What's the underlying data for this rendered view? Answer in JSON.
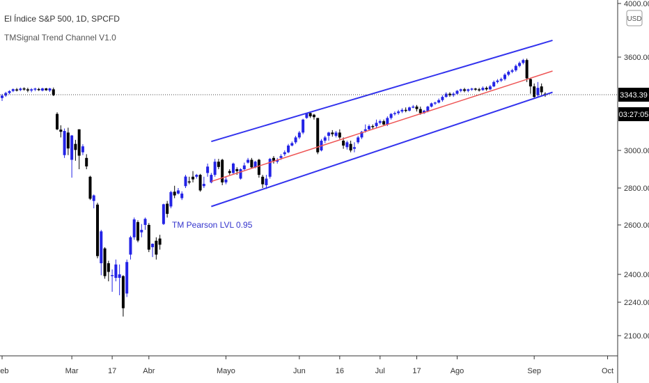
{
  "legend": {
    "title": "El Índice S&P 500, 1D, SPCFD",
    "indicator": "TMSignal Trend Channel V1.0"
  },
  "currency_button": "USD",
  "price_badge": "3343.39",
  "timer_badge": "03:27:05",
  "annotation": "TM Pearson LVL 0.95",
  "colors": {
    "up_candle": "#2323e6",
    "down_candle": "#000000",
    "channel": "#3333ee",
    "midline": "#ee5555",
    "annotation": "#3333cc"
  },
  "chart_data": {
    "type": "candlestick",
    "ylim": [
      2100,
      4000
    ],
    "y_ticks": [
      {
        "v": 4000,
        "label": "4000.00"
      },
      {
        "v": 3600,
        "label": "3600.00"
      },
      {
        "v": 3343.39,
        "label": "3343.39"
      },
      {
        "v": 3000,
        "label": "3000.00"
      },
      {
        "v": 2800,
        "label": "2800.00"
      },
      {
        "v": 2600,
        "label": "2600.00"
      },
      {
        "v": 2400,
        "label": "2400.00"
      },
      {
        "v": 2240,
        "label": "2240.00"
      },
      {
        "v": 2100,
        "label": "2100.00"
      }
    ],
    "x_ticks": [
      {
        "label": "Feb",
        "i": 0
      },
      {
        "label": "Mar",
        "i": 19
      },
      {
        "label": "17",
        "i": 30
      },
      {
        "label": "Abr",
        "i": 40
      },
      {
        "label": "Mayo",
        "i": 61
      },
      {
        "label": "Jun",
        "i": 81
      },
      {
        "label": "16",
        "i": 92
      },
      {
        "label": "Jul",
        "i": 103
      },
      {
        "label": "17",
        "i": 113
      },
      {
        "label": "Ago",
        "i": 124
      },
      {
        "label": "Sep",
        "i": 145
      },
      {
        "label": "Oct",
        "i": 165
      }
    ],
    "last_price": 3343.39,
    "candles": [
      [
        3323,
        3338,
        3305,
        3349
      ],
      [
        3338,
        3355,
        3330,
        3363
      ],
      [
        3355,
        3368,
        3346,
        3374
      ],
      [
        3369,
        3381,
        3361,
        3386
      ],
      [
        3379,
        3374,
        3365,
        3389
      ],
      [
        3375,
        3385,
        3368,
        3392
      ],
      [
        3386,
        3380,
        3371,
        3394
      ],
      [
        3380,
        3372,
        3360,
        3391
      ],
      [
        3372,
        3380,
        3360,
        3388
      ],
      [
        3378,
        3385,
        3368,
        3391
      ],
      [
        3382,
        3375,
        3369,
        3390
      ],
      [
        3372,
        3386,
        3366,
        3391
      ],
      [
        3386,
        3374,
        3370,
        3390
      ],
      [
        3372,
        3386,
        3362,
        3390
      ],
      [
        3380,
        3340,
        3335,
        3392
      ],
      [
        3225,
        3130,
        3125,
        3235
      ],
      [
        3128,
        3115,
        3080,
        3155
      ],
      [
        2975,
        3120,
        2960,
        3135
      ],
      [
        3110,
        3012,
        2975,
        3140
      ],
      [
        2950,
        3092,
        2855,
        3095
      ],
      [
        3040,
        3003,
        2945,
        3065
      ],
      [
        3130,
        2972,
        2900,
        3130
      ],
      [
        2990,
        3025,
        2975,
        3038
      ],
      [
        2960,
        2915,
        2900,
        2980
      ],
      [
        2860,
        2742,
        2735,
        2865
      ],
      [
        2730,
        2760,
        2690,
        2765
      ],
      [
        2710,
        2474,
        2465,
        2720
      ],
      [
        2445,
        2574,
        2395,
        2580
      ],
      [
        2505,
        2390,
        2375,
        2510
      ],
      [
        2445,
        2410,
        2360,
        2455
      ],
      [
        2395,
        2396,
        2300,
        2420
      ],
      [
        2380,
        2440,
        2360,
        2460
      ],
      [
        2380,
        2400,
        2280,
        2440
      ],
      [
        2390,
        2215,
        2180,
        2395
      ],
      [
        2290,
        2450,
        2270,
        2460
      ],
      [
        2480,
        2550,
        2460,
        2556
      ],
      [
        2550,
        2630,
        2540,
        2640
      ],
      [
        2615,
        2537,
        2530,
        2625
      ],
      [
        2570,
        2580,
        2550,
        2605
      ],
      [
        2600,
        2633,
        2580,
        2640
      ],
      [
        2600,
        2500,
        2490,
        2610
      ],
      [
        2510,
        2524,
        2470,
        2525
      ],
      [
        2536,
        2480,
        2460,
        2550
      ],
      [
        2545,
        2520,
        2500,
        2560
      ],
      [
        2605,
        2712,
        2600,
        2715
      ],
      [
        2715,
        2660,
        2640,
        2730
      ],
      [
        2700,
        2778,
        2690,
        2785
      ],
      [
        2780,
        2760,
        2745,
        2812
      ],
      [
        2770,
        2787,
        2765,
        2800
      ],
      [
        2745,
        2770,
        2735,
        2782
      ],
      [
        2810,
        2861,
        2800,
        2870
      ],
      [
        2835,
        2830,
        2820,
        2860
      ],
      [
        2860,
        2846,
        2830,
        2890
      ],
      [
        2860,
        2870,
        2850,
        2875
      ],
      [
        2870,
        2787,
        2780,
        2875
      ],
      [
        2810,
        2822,
        2800,
        2860
      ],
      [
        2880,
        2914,
        2860,
        2930
      ],
      [
        2830,
        2870,
        2825,
        2880
      ],
      [
        2870,
        2940,
        2860,
        2955
      ],
      [
        2940,
        2912,
        2900,
        2955
      ],
      [
        2950,
        2830,
        2815,
        2955
      ],
      [
        2830,
        2845,
        2820,
        2860
      ],
      [
        2890,
        2880,
        2870,
        2900
      ],
      [
        2880,
        2930,
        2875,
        2935
      ],
      [
        2900,
        2890,
        2870,
        2910
      ],
      [
        2850,
        2900,
        2845,
        2905
      ],
      [
        2900,
        2920,
        2895,
        2935
      ],
      [
        2935,
        2950,
        2930,
        2960
      ],
      [
        2950,
        2910,
        2905,
        2960
      ],
      [
        2910,
        2940,
        2905,
        2945
      ],
      [
        2950,
        2870,
        2855,
        2955
      ],
      [
        2860,
        2820,
        2800,
        2870
      ],
      [
        2815,
        2850,
        2795,
        2870
      ],
      [
        2860,
        2955,
        2850,
        2960
      ],
      [
        2960,
        2945,
        2930,
        2970
      ],
      [
        2940,
        2950,
        2930,
        2960
      ],
      [
        2960,
        2970,
        2950,
        2980
      ],
      [
        2980,
        2990,
        2970,
        3000
      ],
      [
        2990,
        3030,
        2985,
        3040
      ],
      [
        3030,
        3045,
        3025,
        3055
      ],
      [
        3050,
        3080,
        3040,
        3090
      ],
      [
        3080,
        3110,
        3070,
        3120
      ],
      [
        3110,
        3190,
        3100,
        3195
      ],
      [
        3200,
        3230,
        3195,
        3232
      ],
      [
        3230,
        3210,
        3200,
        3240
      ],
      [
        3220,
        3205,
        3190,
        3225
      ],
      [
        3200,
        2990,
        2980,
        3200
      ],
      [
        3000,
        3060,
        2995,
        3070
      ],
      [
        3060,
        3080,
        3045,
        3090
      ],
      [
        3090,
        3110,
        3060,
        3115
      ],
      [
        3110,
        3100,
        3085,
        3125
      ],
      [
        3090,
        3110,
        3080,
        3120
      ],
      [
        3110,
        3080,
        3070,
        3130
      ],
      [
        3060,
        3030,
        3010,
        3080
      ],
      [
        3020,
        3050,
        3005,
        3060
      ],
      [
        3040,
        3000,
        2990,
        3060
      ],
      [
        3010,
        3020,
        2990,
        3050
      ],
      [
        3050,
        3080,
        3040,
        3090
      ],
      [
        3080,
        3115,
        3070,
        3120
      ],
      [
        3120,
        3130,
        3110,
        3160
      ],
      [
        3130,
        3150,
        3120,
        3160
      ],
      [
        3150,
        3145,
        3130,
        3160
      ],
      [
        3150,
        3170,
        3140,
        3190
      ],
      [
        3170,
        3180,
        3160,
        3190
      ],
      [
        3180,
        3160,
        3150,
        3190
      ],
      [
        3160,
        3200,
        3150,
        3210
      ],
      [
        3200,
        3225,
        3190,
        3230
      ],
      [
        3225,
        3230,
        3215,
        3240
      ],
      [
        3230,
        3240,
        3220,
        3250
      ],
      [
        3240,
        3250,
        3230,
        3260
      ],
      [
        3250,
        3245,
        3235,
        3265
      ],
      [
        3245,
        3265,
        3240,
        3270
      ],
      [
        3265,
        3270,
        3260,
        3280
      ],
      [
        3270,
        3255,
        3240,
        3280
      ],
      [
        3255,
        3230,
        3220,
        3270
      ],
      [
        3230,
        3245,
        3225,
        3250
      ],
      [
        3240,
        3270,
        3235,
        3275
      ],
      [
        3270,
        3290,
        3265,
        3295
      ],
      [
        3290,
        3295,
        3280,
        3300
      ],
      [
        3295,
        3310,
        3290,
        3320
      ],
      [
        3310,
        3330,
        3300,
        3340
      ],
      [
        3330,
        3350,
        3325,
        3360
      ],
      [
        3350,
        3340,
        3330,
        3360
      ],
      [
        3340,
        3350,
        3330,
        3360
      ],
      [
        3350,
        3370,
        3345,
        3375
      ],
      [
        3370,
        3380,
        3360,
        3385
      ],
      [
        3380,
        3370,
        3360,
        3390
      ],
      [
        3370,
        3380,
        3360,
        3385
      ],
      [
        3380,
        3385,
        3370,
        3390
      ],
      [
        3385,
        3380,
        3370,
        3390
      ],
      [
        3380,
        3375,
        3365,
        3390
      ],
      [
        3375,
        3390,
        3370,
        3400
      ],
      [
        3390,
        3380,
        3370,
        3400
      ],
      [
        3380,
        3400,
        3375,
        3410
      ],
      [
        3400,
        3430,
        3395,
        3440
      ],
      [
        3430,
        3440,
        3420,
        3450
      ],
      [
        3440,
        3450,
        3430,
        3460
      ],
      [
        3450,
        3480,
        3440,
        3490
      ],
      [
        3480,
        3500,
        3470,
        3510
      ],
      [
        3500,
        3510,
        3490,
        3520
      ],
      [
        3510,
        3540,
        3500,
        3550
      ],
      [
        3540,
        3560,
        3530,
        3570
      ],
      [
        3560,
        3580,
        3550,
        3588
      ],
      [
        3580,
        3455,
        3430,
        3590
      ],
      [
        3450,
        3400,
        3350,
        3460
      ],
      [
        3400,
        3330,
        3320,
        3420
      ],
      [
        3340,
        3390,
        3330,
        3430
      ],
      [
        3400,
        3360,
        3340,
        3420
      ],
      [
        3350,
        3340,
        3330,
        3360
      ]
    ]
  },
  "channel": {
    "start_i": 57,
    "end_i": 150,
    "upper": [
      3055,
      3725
    ],
    "mid": [
      2835,
      3505
    ],
    "lower": [
      2700,
      3360
    ]
  }
}
